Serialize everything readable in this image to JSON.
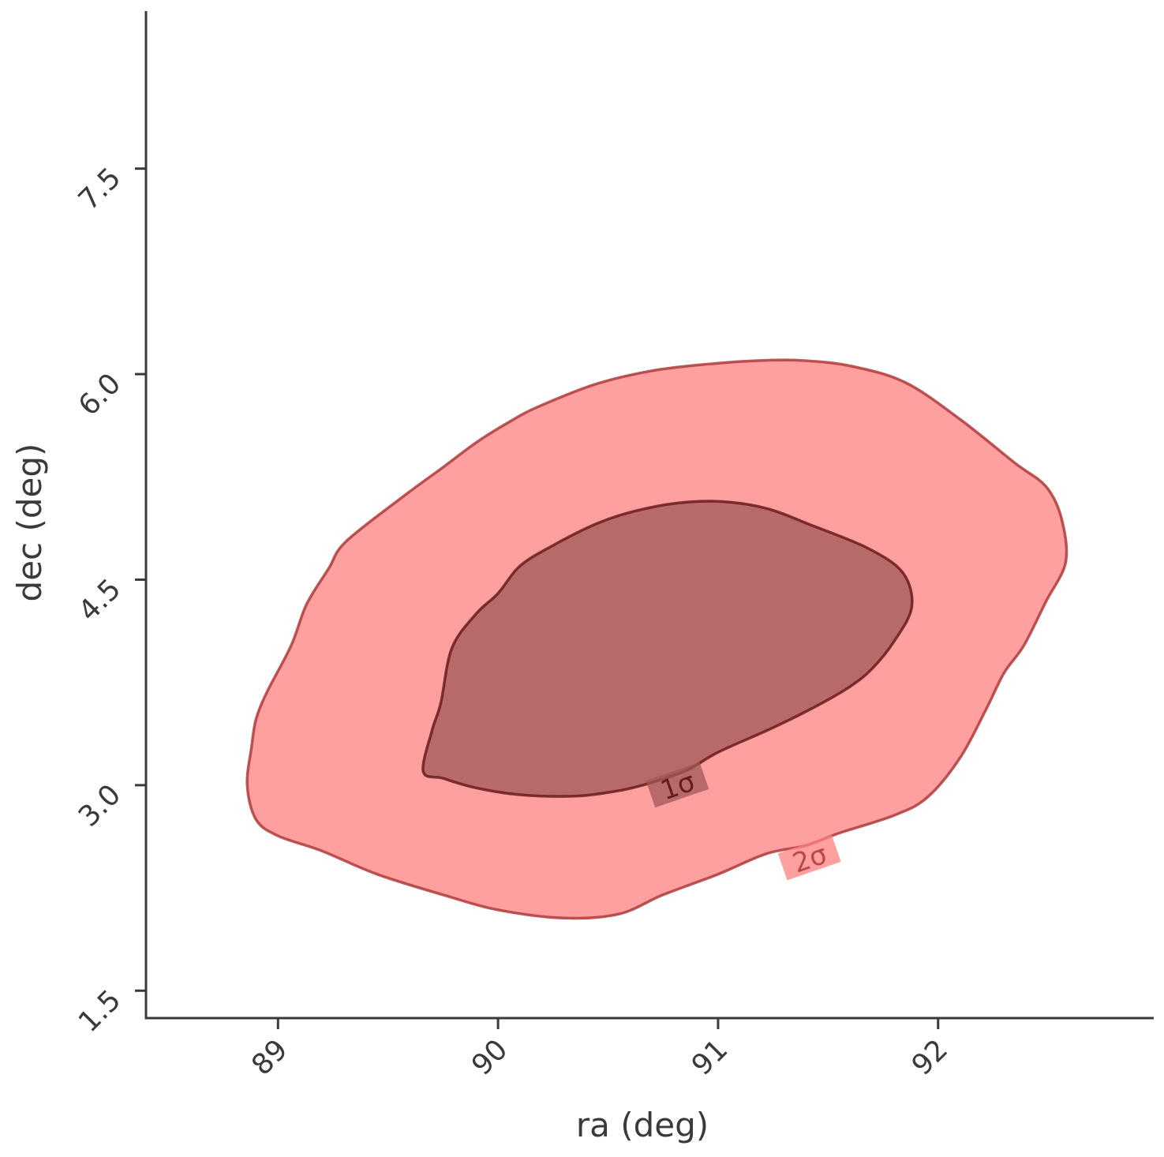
{
  "chart_data": {
    "type": "contour",
    "xlabel": "ra (deg)",
    "ylabel": "dec (deg)",
    "xlim": [
      88.4,
      92.98
    ],
    "ylim": [
      1.3,
      8.65
    ],
    "x_ticks": [
      89,
      90,
      91,
      92
    ],
    "x_tick_labels": [
      "89",
      "90",
      "91",
      "92"
    ],
    "y_ticks": [
      1.5,
      3.0,
      4.5,
      6.0,
      7.5
    ],
    "y_tick_labels": [
      "1.5",
      "3.0",
      "4.5",
      "6.0",
      "7.5"
    ],
    "grid": false,
    "colors": {
      "axis": "#3a3a3a",
      "outer_fill": "#ff8080",
      "outer_edge": "#b03a3a",
      "inner_fill": "#a05858",
      "inner_edge": "#6a1c1c",
      "label_1sigma": "#6a1c1c",
      "label_2sigma": "#b84848"
    },
    "contours": [
      {
        "level": "2σ",
        "label": "2σ",
        "label_at": [
          91.42,
          2.45
        ],
        "points": [
          [
            88.88,
            3.28
          ],
          [
            88.9,
            3.48
          ],
          [
            88.95,
            3.68
          ],
          [
            89.06,
            4.02
          ],
          [
            89.13,
            4.32
          ],
          [
            89.23,
            4.58
          ],
          [
            89.31,
            4.78
          ],
          [
            89.58,
            5.12
          ],
          [
            89.75,
            5.32
          ],
          [
            89.9,
            5.5
          ],
          [
            90.05,
            5.65
          ],
          [
            90.18,
            5.76
          ],
          [
            90.45,
            5.93
          ],
          [
            90.72,
            6.03
          ],
          [
            91.0,
            6.08
          ],
          [
            91.2,
            6.1
          ],
          [
            91.38,
            6.1
          ],
          [
            91.6,
            6.06
          ],
          [
            91.85,
            5.94
          ],
          [
            92.1,
            5.67
          ],
          [
            92.35,
            5.35
          ],
          [
            92.49,
            5.18
          ],
          [
            92.56,
            4.95
          ],
          [
            92.58,
            4.63
          ],
          [
            92.49,
            4.34
          ],
          [
            92.39,
            4.02
          ],
          [
            92.3,
            3.82
          ],
          [
            92.22,
            3.56
          ],
          [
            92.1,
            3.2
          ],
          [
            91.95,
            2.91
          ],
          [
            91.8,
            2.78
          ],
          [
            91.55,
            2.65
          ],
          [
            91.4,
            2.56
          ],
          [
            91.22,
            2.5
          ],
          [
            91.0,
            2.35
          ],
          [
            90.75,
            2.2
          ],
          [
            90.55,
            2.06
          ],
          [
            90.3,
            2.03
          ],
          [
            90.0,
            2.09
          ],
          [
            89.75,
            2.2
          ],
          [
            89.45,
            2.35
          ],
          [
            89.2,
            2.52
          ],
          [
            89.0,
            2.63
          ],
          [
            88.9,
            2.75
          ],
          [
            88.86,
            3.0
          ]
        ]
      },
      {
        "level": "1σ",
        "label": "1σ",
        "label_at": [
          90.82,
          2.98
        ],
        "points": [
          [
            89.66,
            3.1
          ],
          [
            89.7,
            3.4
          ],
          [
            89.74,
            3.6
          ],
          [
            89.79,
            4.0
          ],
          [
            89.9,
            4.25
          ],
          [
            90.0,
            4.4
          ],
          [
            90.1,
            4.6
          ],
          [
            90.25,
            4.75
          ],
          [
            90.45,
            4.91
          ],
          [
            90.62,
            5.0
          ],
          [
            90.82,
            5.06
          ],
          [
            91.02,
            5.07
          ],
          [
            91.22,
            5.02
          ],
          [
            91.42,
            4.9
          ],
          [
            91.68,
            4.73
          ],
          [
            91.84,
            4.55
          ],
          [
            91.88,
            4.3
          ],
          [
            91.8,
            4.05
          ],
          [
            91.7,
            3.85
          ],
          [
            91.6,
            3.72
          ],
          [
            91.45,
            3.58
          ],
          [
            91.25,
            3.42
          ],
          [
            91.0,
            3.24
          ],
          [
            90.86,
            3.11
          ],
          [
            90.7,
            3.02
          ],
          [
            90.55,
            2.96
          ],
          [
            90.35,
            2.92
          ],
          [
            90.1,
            2.93
          ],
          [
            89.9,
            2.98
          ],
          [
            89.75,
            3.05
          ]
        ]
      }
    ]
  }
}
